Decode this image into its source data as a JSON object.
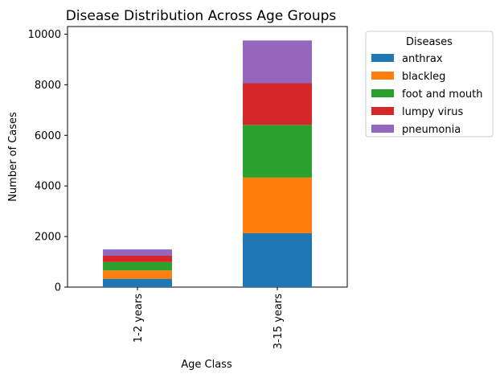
{
  "chart_data": {
    "type": "bar",
    "stacked": true,
    "title": "Disease Distribution Across Age Groups",
    "xlabel": "Age Class",
    "ylabel": "Number of Cases",
    "categories": [
      "1-2 years",
      "3-15 years"
    ],
    "ylim": [
      0,
      10300
    ],
    "yticks": [
      0,
      2000,
      4000,
      6000,
      8000,
      10000
    ],
    "legend": {
      "title": "Diseases",
      "placement": "outside-right-top"
    },
    "series": [
      {
        "name": "anthrax",
        "color": "#1f77b4",
        "values": [
          330,
          2130
        ]
      },
      {
        "name": "blackleg",
        "color": "#ff7f0e",
        "values": [
          330,
          2200
        ]
      },
      {
        "name": "foot and mouth",
        "color": "#2ca02c",
        "values": [
          330,
          2080
        ]
      },
      {
        "name": "lumpy virus",
        "color": "#d62728",
        "values": [
          250,
          1650
        ]
      },
      {
        "name": "pneumonia",
        "color": "#9467bd",
        "values": [
          250,
          1690
        ]
      }
    ]
  }
}
